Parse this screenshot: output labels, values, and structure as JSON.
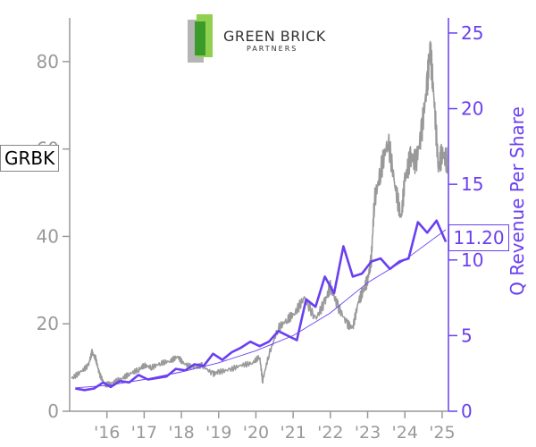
{
  "logo": {
    "line1": "GREEN BRICK",
    "line2": "PARTNERS",
    "colors": {
      "gray": "#b5b5b5",
      "green_light": "#8fd14f",
      "green_dark": "#3a9a2a"
    }
  },
  "ticker": "GRBK",
  "last_value_label": "11.20",
  "colors": {
    "price": "#999999",
    "revenue": "#6a3ff0",
    "trend": "#6a3ff0",
    "axis_left": "#999999",
    "axis_right": "#6a3ff0"
  },
  "chart_data": {
    "type": "line",
    "title": "",
    "x_tick_labels": [
      "'16",
      "'17",
      "'18",
      "'19",
      "'20",
      "'21",
      "'22",
      "'23",
      "'24",
      "'25"
    ],
    "x_range": [
      2015.0,
      2025.17
    ],
    "y_left": {
      "label": "",
      "range": [
        0,
        90
      ],
      "ticks": [
        0,
        20,
        40,
        60,
        80
      ]
    },
    "y_right": {
      "label": "Q Revenue Per Share",
      "range": [
        0,
        26
      ],
      "ticks": [
        0,
        5,
        10,
        15,
        20,
        25
      ]
    },
    "grid": false,
    "series": [
      {
        "name": "",
        "axis": "left",
        "style": "price",
        "points": [
          [
            2015.05,
            7.5
          ],
          [
            2015.3,
            9.0
          ],
          [
            2015.5,
            10.5
          ],
          [
            2015.6,
            13.5
          ],
          [
            2015.7,
            12.0
          ],
          [
            2015.8,
            8.5
          ],
          [
            2015.95,
            6.0
          ],
          [
            2016.15,
            6.5
          ],
          [
            2016.4,
            7.5
          ],
          [
            2016.6,
            8.5
          ],
          [
            2016.85,
            9.5
          ],
          [
            2017.0,
            10.5
          ],
          [
            2017.2,
            10.0
          ],
          [
            2017.45,
            11.0
          ],
          [
            2017.7,
            11.5
          ],
          [
            2017.9,
            12.5
          ],
          [
            2018.05,
            11.0
          ],
          [
            2018.3,
            10.0
          ],
          [
            2018.55,
            10.5
          ],
          [
            2018.85,
            8.5
          ],
          [
            2019.0,
            9.0
          ],
          [
            2019.3,
            9.5
          ],
          [
            2019.6,
            10.5
          ],
          [
            2019.9,
            11.0
          ],
          [
            2020.1,
            12.5
          ],
          [
            2020.18,
            7.0
          ],
          [
            2020.35,
            13.0
          ],
          [
            2020.6,
            19.0
          ],
          [
            2020.85,
            21.0
          ],
          [
            2021.05,
            22.5
          ],
          [
            2021.3,
            26.0
          ],
          [
            2021.6,
            21.0
          ],
          [
            2021.85,
            25.0
          ],
          [
            2022.0,
            28.5
          ],
          [
            2022.2,
            24.0
          ],
          [
            2022.45,
            20.0
          ],
          [
            2022.6,
            19.0
          ],
          [
            2022.75,
            25.0
          ],
          [
            2022.9,
            28.0
          ],
          [
            2023.0,
            30.0
          ],
          [
            2023.1,
            35.0
          ],
          [
            2023.18,
            48.0
          ],
          [
            2023.35,
            55.0
          ],
          [
            2023.55,
            62.0
          ],
          [
            2023.75,
            51.0
          ],
          [
            2023.9,
            44.0
          ],
          [
            2024.0,
            53.0
          ],
          [
            2024.15,
            58.0
          ],
          [
            2024.3,
            57.0
          ],
          [
            2024.45,
            64.0
          ],
          [
            2024.6,
            75.0
          ],
          [
            2024.68,
            83.0
          ],
          [
            2024.78,
            72.0
          ],
          [
            2024.9,
            56.0
          ],
          [
            2025.0,
            59.0
          ],
          [
            2025.15,
            57.0
          ]
        ]
      },
      {
        "name": "",
        "axis": "right",
        "style": "revenue",
        "points": [
          [
            2015.15,
            1.5
          ],
          [
            2015.4,
            1.4
          ],
          [
            2015.65,
            1.5
          ],
          [
            2015.9,
            1.9
          ],
          [
            2016.1,
            1.6
          ],
          [
            2016.35,
            2.0
          ],
          [
            2016.6,
            1.9
          ],
          [
            2016.85,
            2.4
          ],
          [
            2017.1,
            2.1
          ],
          [
            2017.35,
            2.2
          ],
          [
            2017.6,
            2.3
          ],
          [
            2017.85,
            2.8
          ],
          [
            2018.1,
            2.7
          ],
          [
            2018.35,
            3.1
          ],
          [
            2018.6,
            3.0
          ],
          [
            2018.85,
            3.8
          ],
          [
            2019.1,
            3.4
          ],
          [
            2019.35,
            3.9
          ],
          [
            2019.6,
            4.2
          ],
          [
            2019.85,
            4.6
          ],
          [
            2020.1,
            4.3
          ],
          [
            2020.35,
            4.6
          ],
          [
            2020.6,
            5.3
          ],
          [
            2020.85,
            5.0
          ],
          [
            2021.1,
            4.7
          ],
          [
            2021.35,
            7.4
          ],
          [
            2021.6,
            6.9
          ],
          [
            2021.85,
            8.9
          ],
          [
            2022.1,
            7.8
          ],
          [
            2022.35,
            10.9
          ],
          [
            2022.6,
            8.9
          ],
          [
            2022.85,
            9.1
          ],
          [
            2023.1,
            9.9
          ],
          [
            2023.35,
            10.1
          ],
          [
            2023.6,
            9.4
          ],
          [
            2023.85,
            9.9
          ],
          [
            2024.1,
            10.1
          ],
          [
            2024.35,
            12.5
          ],
          [
            2024.6,
            11.8
          ],
          [
            2024.85,
            12.6
          ],
          [
            2025.1,
            11.2
          ]
        ]
      },
      {
        "name": "",
        "axis": "right",
        "style": "trend",
        "points": [
          [
            2015.15,
            1.55
          ],
          [
            2016.0,
            1.7
          ],
          [
            2017.0,
            2.1
          ],
          [
            2018.0,
            2.6
          ],
          [
            2019.0,
            3.2
          ],
          [
            2020.0,
            4.0
          ],
          [
            2021.0,
            5.0
          ],
          [
            2022.0,
            6.5
          ],
          [
            2023.0,
            8.5
          ],
          [
            2024.0,
            10.0
          ],
          [
            2025.1,
            12.0
          ]
        ]
      }
    ]
  }
}
